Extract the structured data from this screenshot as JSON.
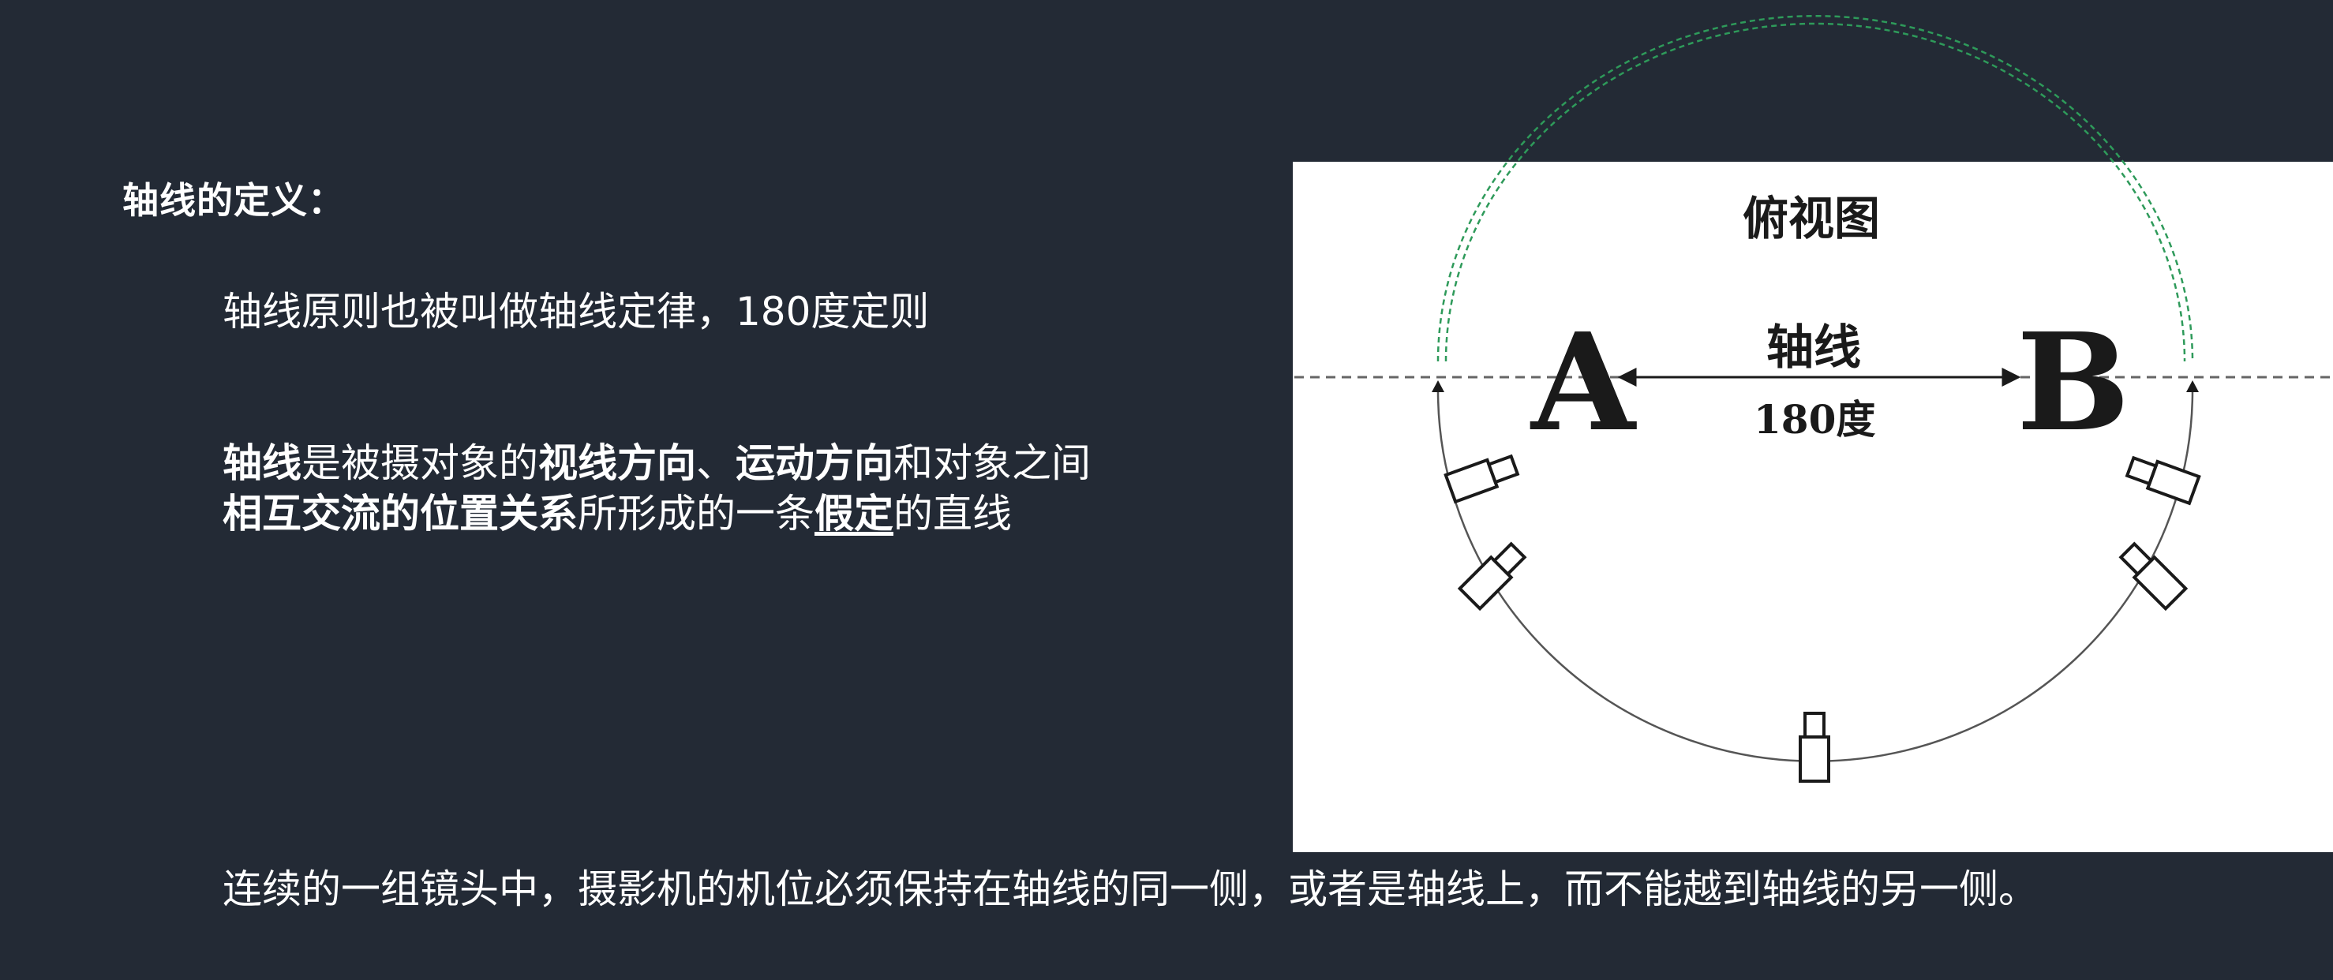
{
  "text": {
    "heading": "轴线的定义：",
    "line1": "轴线原则也被叫做轴线定律，180度定则",
    "definition": {
      "s1_bold": "轴线",
      "s2": "是被摄对象的",
      "s3_bold": "视线方向",
      "s4": "、",
      "s5_bold": "运动方向",
      "s6": "和对象之间",
      "s7_bold": "相互交流的位置关系",
      "s8": "所形成的一条",
      "s9_bold_underline": "假定",
      "s10": "的直线"
    },
    "conclusion": "连续的一组镜头中，摄影机的机位必须保持在轴线的同一侧，或者是轴线上，而不能越到轴线的另一侧。"
  },
  "figure": {
    "title": "俯视图",
    "axis_label": "轴线",
    "angle_label": "180度",
    "subject_a": "A",
    "subject_b": "B",
    "colors": {
      "background": "#ffffff",
      "ink": "#1a1a1a",
      "axis_dash": "#666666",
      "arc_dash": "#2e9a5a"
    },
    "cameras": [
      "camera-icon",
      "camera-icon",
      "camera-icon",
      "camera-icon",
      "camera-icon"
    ]
  },
  "theme": {
    "slide_background": "#232a35",
    "text_color": "#ffffff"
  }
}
